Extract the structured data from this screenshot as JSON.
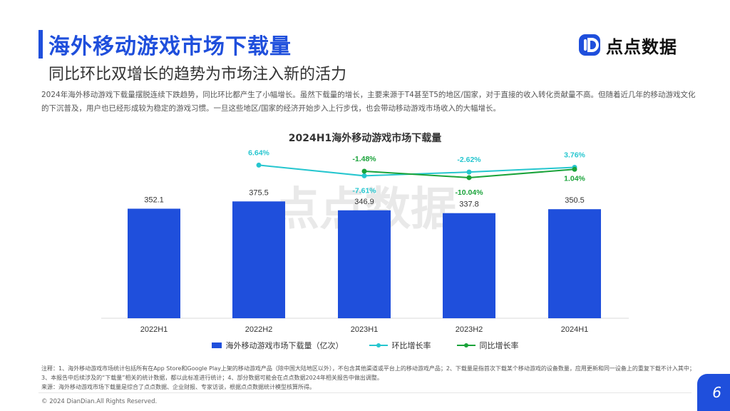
{
  "header": {
    "title": "海外移动游戏市场下载量",
    "subtitle": "同比环比双增长的趋势为市场注入新的活力",
    "description": "2024年海外移动游戏下载量摆脱连续下跌趋势，同比环比都产生了小幅增长。虽然下载量的增长，主要来源于T4甚至T5的地区/国家，对于直接的收入转化贡献量不高。但随着近几年的移动游戏文化的下沉普及，用户也已经形成较为稳定的游戏习惯。一旦这些地区/国家的经济开始步入上行步伐，也会带动移动游戏市场收入的大幅增长。"
  },
  "logo": {
    "text": "点点数据",
    "icon": "dd-logo-icon",
    "color": "#1f4fdc"
  },
  "watermark": {
    "text": "点点数据"
  },
  "chart_data": {
    "type": "bar",
    "title": "2024H1海外移动游戏市场下载量",
    "categories": [
      "2022H1",
      "2022H2",
      "2023H1",
      "2023H2",
      "2024H1"
    ],
    "series": [
      {
        "name": "海外移动游戏市场下载量（亿次）",
        "type": "bar",
        "color": "#1f4fdc",
        "values": [
          352.1,
          375.5,
          346.9,
          337.8,
          350.5
        ],
        "labels": [
          "352.1",
          "375.5",
          "346.9",
          "337.8",
          "350.5"
        ]
      },
      {
        "name": "环比增长率",
        "type": "line",
        "color": "#26c6cf",
        "values": [
          6.64,
          -7.61,
          -2.62,
          3.76
        ],
        "x": [
          "2022H2",
          "2023H1",
          "2023H2",
          "2024H1"
        ],
        "labels": [
          "6.64%",
          "-7.61%",
          "-2.62%",
          "3.76%"
        ]
      },
      {
        "name": "同比增长率",
        "type": "line",
        "color": "#1aa33a",
        "values": [
          -1.48,
          -10.04,
          1.04
        ],
        "x": [
          "2023H1",
          "2023H2",
          "2024H1"
        ],
        "labels": [
          "-1.48%",
          "-10.04%",
          "1.04%"
        ]
      }
    ],
    "grid": false,
    "legend_position": "bottom"
  },
  "notes": {
    "note1": "注释：1、海外移动游戏市场统计包括所有在App Store和Google Play上架的移动游戏产品（除中国大陆地区以外），不包含其他渠道或平台上的移动游戏产品；2、下载量是指首次下载某个移动游戏的设备数量，应用更新和同一设备上的重复下载不计入其中；3、本报告中后续涉及的“下载量”相关的统计数据，都以此标准进行统计；4、部分数据可能会在点点数据2024年相关报告中做出调整。",
    "source": "来源：海外移动游戏市场下载量是综合了点点数据、企业财报、专家访谈，根据点点数据统计模型核算所得。"
  },
  "footer": {
    "copyright": "© 2024 DianDian.All Rights Reserved.",
    "page": "6"
  }
}
